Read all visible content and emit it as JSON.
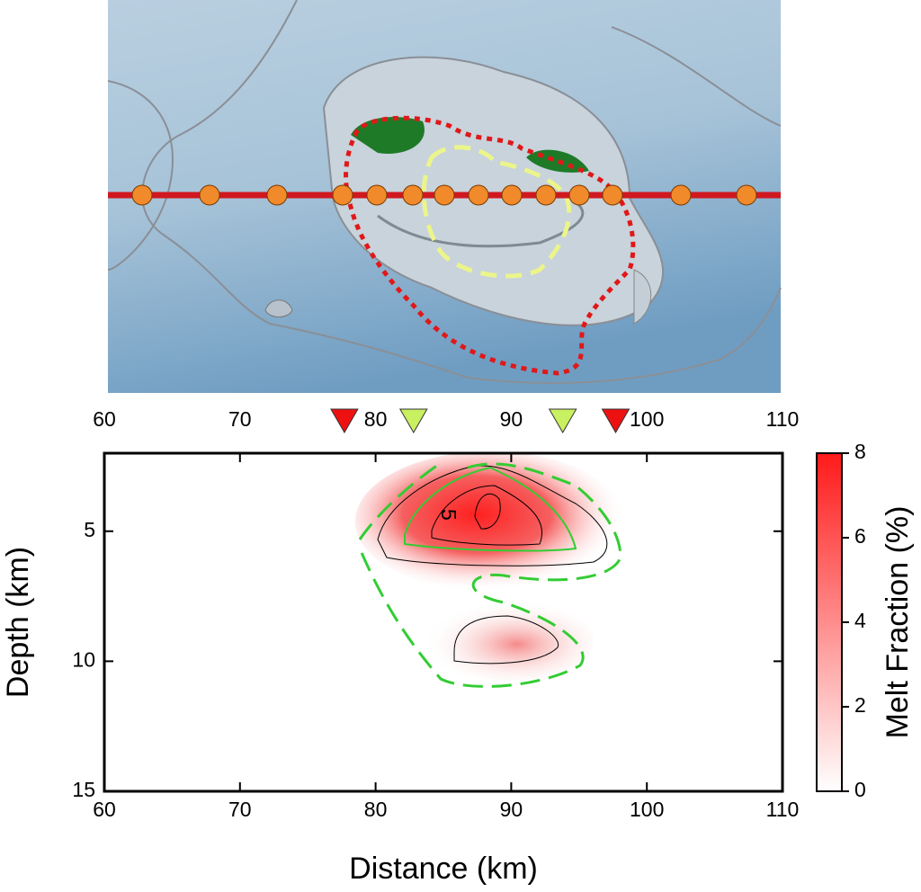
{
  "chart_data": {
    "type": "heatmap",
    "xlabel": "Distance (km)",
    "ylabel": "Depth (km)",
    "xlim": [
      60,
      110
    ],
    "xticks": [
      60,
      70,
      80,
      90,
      100,
      110
    ],
    "ylim": [
      2,
      15
    ],
    "yticks": [
      5,
      10,
      15
    ],
    "y_inverted": true,
    "colorbar": {
      "label": "Melt Fraction (%)",
      "lim": [
        0,
        8
      ],
      "ticks": [
        0,
        2,
        4,
        6,
        8
      ],
      "colors": [
        "#ffffff",
        "#ff1a1a"
      ]
    },
    "contour_label": 5,
    "markers": [
      {
        "color": "#ee1111",
        "x": [
          77.7,
          97.7
        ]
      },
      {
        "color": "#c8f060",
        "x": [
          82.8,
          93.8
        ]
      }
    ]
  }
}
